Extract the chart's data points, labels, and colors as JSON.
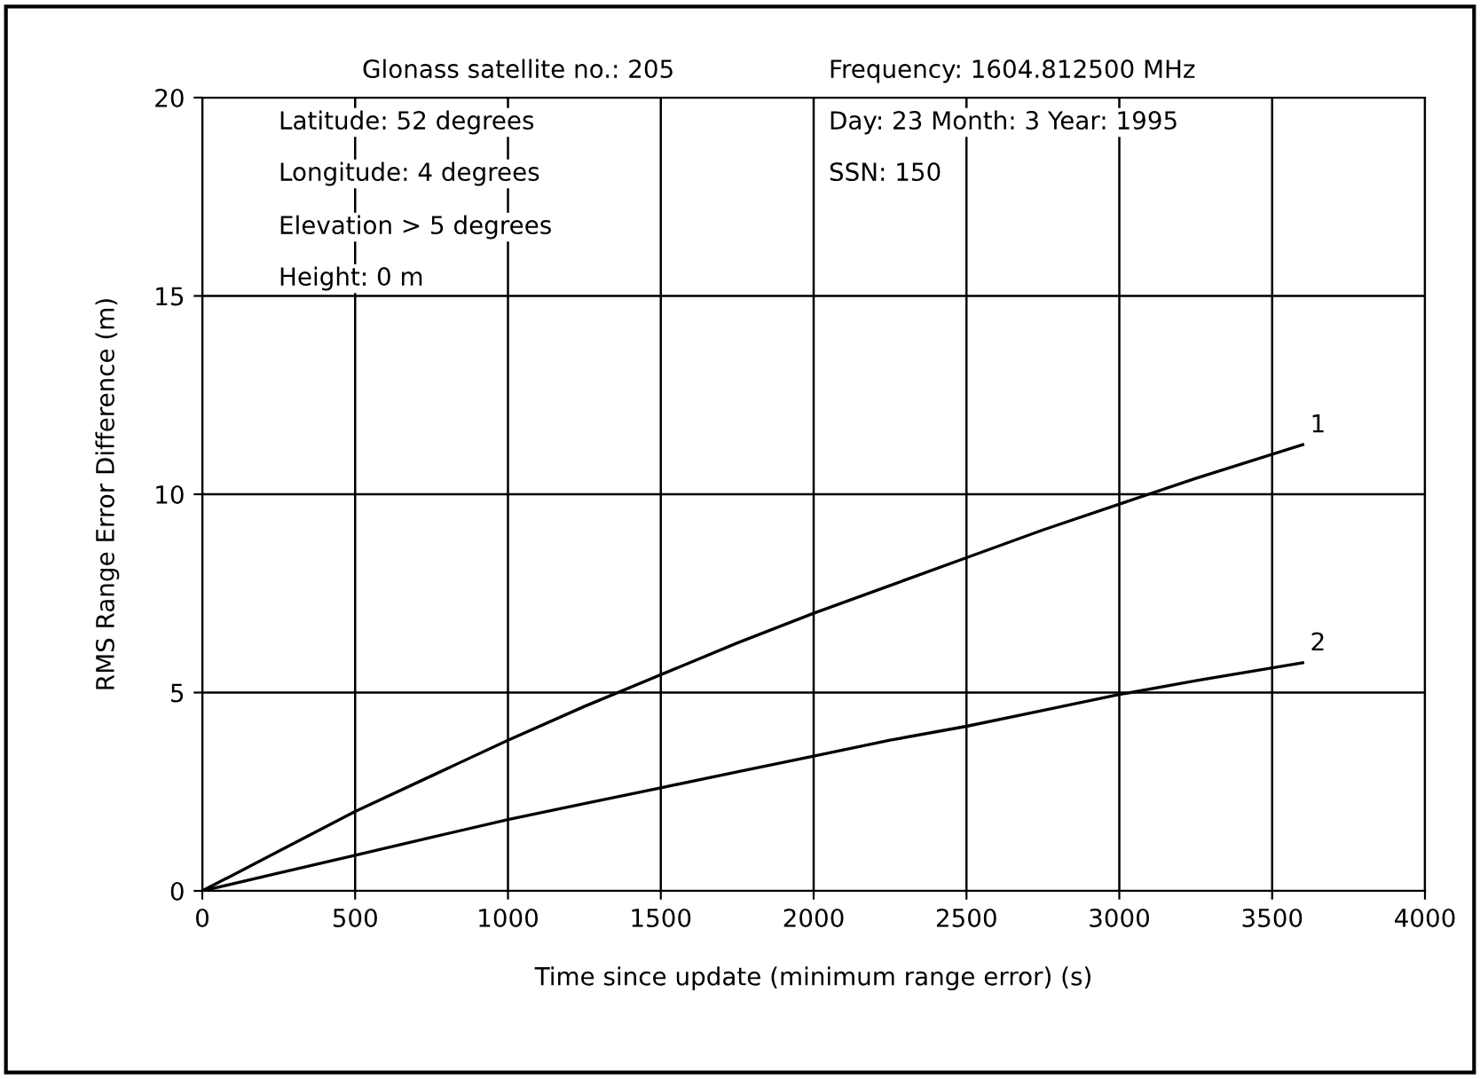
{
  "chart_data": {
    "type": "line",
    "xlabel": "Time since update (minimum range error) (s)",
    "ylabel": "RMS Range Error Difference (m)",
    "annotations": [
      "Glonass satellite no.: 205",
      "Frequency: 1604.812500 MHz",
      "Latitude: 52 degrees",
      "Longitude: 4 degrees",
      "Elevation > 5 degrees",
      "Height: 0 m",
      "Day: 23 Month: 3 Year: 1995",
      "SSN: 150"
    ],
    "x": [
      0,
      250,
      500,
      750,
      1000,
      1250,
      1500,
      1750,
      2000,
      2250,
      2500,
      2750,
      3000,
      3250,
      3600
    ],
    "series": [
      {
        "name": "1",
        "color": "#000000",
        "values": [
          0,
          1.0,
          2.0,
          2.9,
          3.8,
          4.65,
          5.45,
          6.25,
          7.0,
          7.7,
          8.4,
          9.1,
          9.75,
          10.4,
          11.25
        ]
      },
      {
        "name": "2",
        "color": "#000000",
        "values": [
          0,
          0.45,
          0.9,
          1.35,
          1.8,
          2.2,
          2.6,
          3.0,
          3.4,
          3.8,
          4.15,
          4.55,
          4.95,
          5.3,
          5.75
        ]
      }
    ],
    "xlim": [
      0,
      4000
    ],
    "ylim": [
      0,
      20
    ],
    "xticks": [
      0,
      500,
      1000,
      1500,
      2000,
      2500,
      3000,
      3500,
      4000
    ],
    "yticks": [
      0,
      5,
      10,
      15,
      20
    ],
    "grid": true,
    "legend": false,
    "marker": "none",
    "line_style": "solid"
  }
}
